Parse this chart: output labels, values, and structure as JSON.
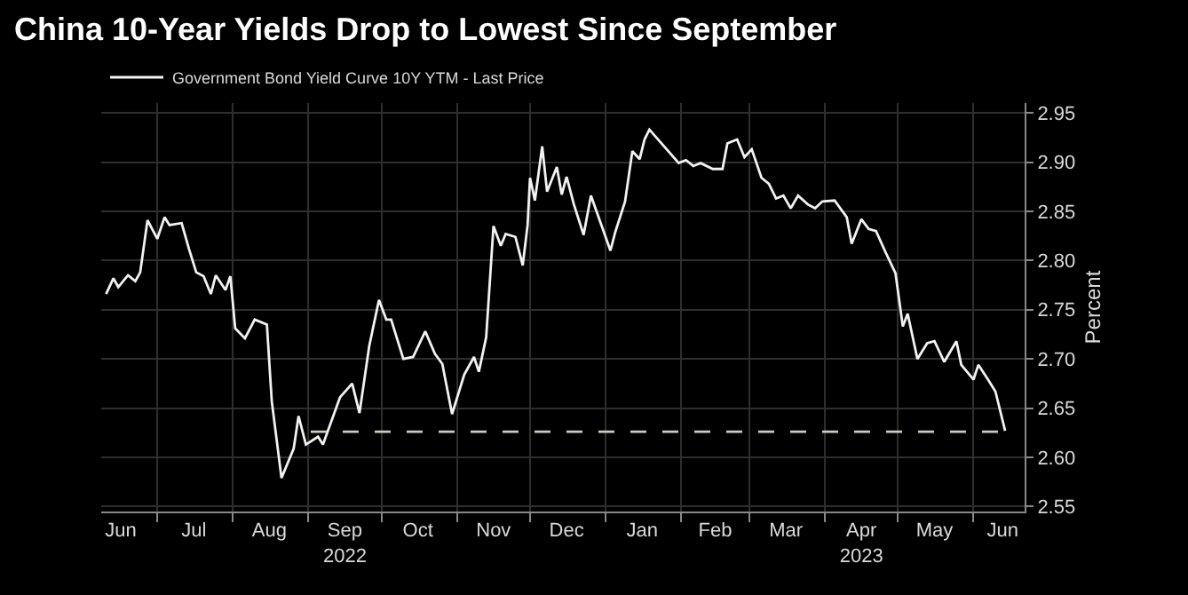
{
  "chart_data": {
    "type": "line",
    "title": "China 10-Year Yields Drop to Lowest Since September",
    "ylabel": "Percent",
    "legend": "top left",
    "grid": true,
    "xlim": [
      "2022-06-08",
      "2023-06-22"
    ],
    "xticks": [
      {
        "value": "2022-06-16",
        "label": "Jun"
      },
      {
        "value": "2022-07-16",
        "label": "Jul"
      },
      {
        "value": "2022-08-16",
        "label": "Aug"
      },
      {
        "value": "2022-09-16",
        "label": "Sep\n2022"
      },
      {
        "value": "2022-10-16",
        "label": "Oct"
      },
      {
        "value": "2022-11-16",
        "label": "Nov"
      },
      {
        "value": "2022-12-16",
        "label": "Dec"
      },
      {
        "value": "2023-01-16",
        "label": "Jan"
      },
      {
        "value": "2023-02-15",
        "label": "Feb"
      },
      {
        "value": "2023-03-16",
        "label": "Mar"
      },
      {
        "value": "2023-04-16",
        "label": "Apr\n2023"
      },
      {
        "value": "2023-05-16",
        "label": "May"
      },
      {
        "value": "2023-06-13",
        "label": "Jun"
      }
    ],
    "ylim": [
      2.545,
      2.96
    ],
    "yticks": [
      2.55,
      {
        "value": 2.6,
        "label": "2.60"
      },
      2.65,
      {
        "value": 2.7,
        "label": "2.70"
      },
      2.75,
      {
        "value": 2.8,
        "label": "2.80"
      },
      2.85,
      {
        "value": 2.9,
        "label": "2.90"
      },
      2.95
    ],
    "series": [
      {
        "name": "Government Bond Yield Curve 10Y YTM - Last Price",
        "color": "#f2f2f2",
        "x": [
          "2022-06-10",
          "2022-06-13",
          "2022-06-15",
          "2022-06-19",
          "2022-06-22",
          "2022-06-24",
          "2022-06-27",
          "2022-07-01",
          "2022-07-04",
          "2022-07-06",
          "2022-07-11",
          "2022-07-14",
          "2022-07-17",
          "2022-07-20",
          "2022-07-23",
          "2022-07-25",
          "2022-07-29",
          "2022-07-31",
          "2022-08-02",
          "2022-08-06",
          "2022-08-10",
          "2022-08-15",
          "2022-08-17",
          "2022-08-21",
          "2022-08-26",
          "2022-08-28",
          "2022-08-31",
          "2022-09-05",
          "2022-09-07",
          "2022-09-14",
          "2022-09-19",
          "2022-09-22",
          "2022-09-26",
          "2022-09-30",
          "2022-10-03",
          "2022-10-05",
          "2022-10-10",
          "2022-10-14",
          "2022-10-19",
          "2022-10-23",
          "2022-10-26",
          "2022-10-30",
          "2022-11-04",
          "2022-11-08",
          "2022-11-10",
          "2022-11-13",
          "2022-11-16",
          "2022-11-19",
          "2022-11-21",
          "2022-11-25",
          "2022-11-28",
          "2022-11-30",
          "2022-12-01",
          "2022-12-03",
          "2022-12-06",
          "2022-12-08",
          "2022-12-12",
          "2022-12-14",
          "2022-12-16",
          "2022-12-19",
          "2022-12-23",
          "2022-12-26",
          "2022-12-30",
          "2023-01-03",
          "2023-01-05",
          "2023-01-09",
          "2023-01-12",
          "2023-01-15",
          "2023-01-17",
          "2023-01-19",
          "2023-01-31",
          "2023-02-03",
          "2023-02-06",
          "2023-02-09",
          "2023-02-14",
          "2023-02-18",
          "2023-02-20",
          "2023-02-24",
          "2023-02-27",
          "2023-03-02",
          "2023-03-06",
          "2023-03-09",
          "2023-03-12",
          "2023-03-15",
          "2023-03-18",
          "2023-03-21",
          "2023-03-25",
          "2023-03-28",
          "2023-03-31",
          "2023-04-05",
          "2023-04-10",
          "2023-04-12",
          "2023-04-16",
          "2023-04-19",
          "2023-04-22",
          "2023-04-26",
          "2023-04-30",
          "2023-05-03",
          "2023-05-05",
          "2023-05-09",
          "2023-05-13",
          "2023-05-16",
          "2023-05-20",
          "2023-05-25",
          "2023-05-27",
          "2023-06-01",
          "2023-06-03",
          "2023-06-07",
          "2023-06-10",
          "2023-06-14"
        ],
        "values": [
          2.766,
          2.782,
          2.773,
          2.785,
          2.779,
          2.788,
          2.841,
          2.822,
          2.844,
          2.836,
          2.838,
          2.812,
          2.788,
          2.784,
          2.766,
          2.785,
          2.77,
          2.784,
          2.731,
          2.721,
          2.74,
          2.735,
          2.657,
          2.579,
          2.609,
          2.642,
          2.613,
          2.621,
          2.613,
          2.661,
          2.675,
          2.645,
          2.713,
          2.76,
          2.74,
          2.74,
          2.7,
          2.702,
          2.728,
          2.705,
          2.695,
          2.644,
          2.684,
          2.702,
          2.687,
          2.722,
          2.835,
          2.815,
          2.827,
          2.824,
          2.795,
          2.836,
          2.884,
          2.861,
          2.916,
          2.87,
          2.895,
          2.867,
          2.885,
          2.857,
          2.826,
          2.866,
          2.838,
          2.81,
          2.829,
          2.86,
          2.911,
          2.903,
          2.923,
          2.933,
          2.899,
          2.902,
          2.896,
          2.899,
          2.893,
          2.893,
          2.919,
          2.923,
          2.905,
          2.913,
          2.884,
          2.878,
          2.863,
          2.866,
          2.853,
          2.866,
          2.857,
          2.853,
          2.86,
          2.861,
          2.844,
          2.817,
          2.842,
          2.832,
          2.83,
          2.808,
          2.787,
          2.733,
          2.746,
          2.7,
          2.716,
          2.718,
          2.697,
          2.718,
          2.694,
          2.679,
          2.694,
          2.679,
          2.667,
          2.627
        ]
      },
      {
        "color": "#c8d0bc",
        "line_style": "dashed",
        "x": [
          "2022-09-02",
          "2023-06-14"
        ],
        "values": [
          2.626,
          2.626
        ]
      }
    ]
  }
}
